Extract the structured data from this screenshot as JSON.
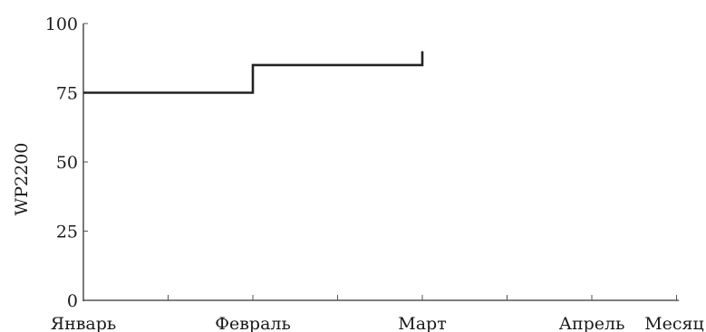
{
  "chart_data": {
    "type": "line",
    "step": true,
    "title": "",
    "xlabel": "Месяц",
    "ylabel": "WP2200",
    "x_categories": [
      "Январь",
      "Февраль",
      "Март",
      "Апрель"
    ],
    "ylim": [
      0,
      100
    ],
    "yticks": [
      0,
      25,
      50,
      75,
      100
    ],
    "grid": false,
    "series": [
      {
        "color": "#222222",
        "points": [
          {
            "x": 0,
            "y": 75
          },
          {
            "x": 1,
            "y": 75
          },
          {
            "x": 1,
            "y": 85
          },
          {
            "x": 2,
            "y": 85
          },
          {
            "x": 2,
            "y": 90
          }
        ]
      }
    ]
  }
}
